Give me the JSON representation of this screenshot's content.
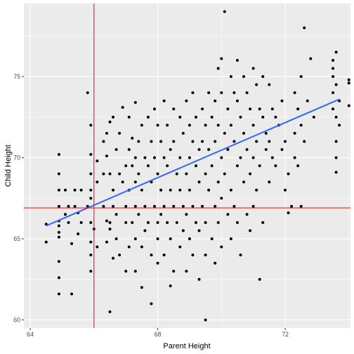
{
  "chart_data": {
    "type": "scatter",
    "xlabel": "Parent Height",
    "ylabel": "Child Height",
    "xlim": [
      63.8,
      74.05
    ],
    "ylim": [
      59.5,
      79.5
    ],
    "x_ticks": [
      64,
      68,
      72
    ],
    "x_tick_labels": [
      "64",
      "68",
      "72"
    ],
    "y_ticks": [
      60,
      65,
      70,
      75
    ],
    "y_tick_labels": [
      "60",
      "65",
      "70",
      "75"
    ],
    "grid": true,
    "legend": "none",
    "reference_lines": {
      "vertical_x": 66.0,
      "horizontal_y": 66.9
    },
    "regression_line": {
      "x": [
        64.5,
        73.7
      ],
      "y": [
        65.8,
        73.6
      ]
    },
    "colors": {
      "panel": "#ebebeb",
      "grid": "#ffffff",
      "points": "#000000",
      "fit_line": "#3366ff",
      "reference": "#ff0000"
    },
    "points": [
      [
        64.5,
        65.9
      ],
      [
        64.5,
        64.8
      ],
      [
        64.9,
        63.6
      ],
      [
        64.9,
        66.1
      ],
      [
        64.9,
        65.4
      ],
      [
        64.9,
        70.2
      ],
      [
        64.9,
        69.0
      ],
      [
        64.9,
        68.0
      ],
      [
        64.9,
        67.0
      ],
      [
        64.9,
        62.6
      ],
      [
        64.9,
        61.6
      ],
      [
        64.9,
        65.8
      ],
      [
        64.9,
        65.1
      ],
      [
        65.1,
        68.0
      ],
      [
        65.1,
        66.5
      ],
      [
        65.2,
        67.0
      ],
      [
        65.2,
        66.0
      ],
      [
        65.3,
        61.6
      ],
      [
        65.3,
        64.7
      ],
      [
        65.4,
        68.0
      ],
      [
        65.4,
        67.0
      ],
      [
        65.5,
        66.6
      ],
      [
        65.5,
        65.3
      ],
      [
        65.6,
        68.0
      ],
      [
        65.6,
        66.0
      ],
      [
        65.8,
        74.0
      ],
      [
        65.8,
        67.0
      ],
      [
        65.9,
        63.0
      ],
      [
        65.9,
        64.8
      ],
      [
        65.9,
        66.0
      ],
      [
        65.9,
        67.5
      ],
      [
        65.9,
        68.0
      ],
      [
        65.9,
        69.0
      ],
      [
        65.9,
        70.2
      ],
      [
        65.9,
        72.0
      ],
      [
        65.9,
        64.0
      ],
      [
        66.0,
        65.6
      ],
      [
        66.1,
        69.8
      ],
      [
        66.1,
        64.5
      ],
      [
        66.1,
        68.5
      ],
      [
        66.3,
        71.0
      ],
      [
        66.3,
        69.0
      ],
      [
        66.3,
        67.0
      ],
      [
        66.4,
        70.1
      ],
      [
        66.4,
        66.1
      ],
      [
        66.4,
        64.8
      ],
      [
        66.4,
        71.5
      ],
      [
        66.5,
        60.5
      ],
      [
        66.5,
        65.6
      ],
      [
        66.5,
        72.2
      ],
      [
        66.5,
        69.0
      ],
      [
        66.5,
        66.0
      ],
      [
        66.6,
        72.5
      ],
      [
        66.6,
        68.0
      ],
      [
        66.6,
        67.0
      ],
      [
        66.6,
        63.8
      ],
      [
        66.7,
        70.5
      ],
      [
        66.7,
        65.0
      ],
      [
        66.7,
        66.5
      ],
      [
        66.8,
        71.5
      ],
      [
        66.8,
        69.0
      ],
      [
        66.8,
        64.0
      ],
      [
        66.9,
        73.1
      ],
      [
        66.9,
        68.5
      ],
      [
        67.0,
        69.5
      ],
      [
        67.0,
        67.0
      ],
      [
        67.0,
        66.0
      ],
      [
        67.0,
        63.0
      ],
      [
        67.1,
        72.5
      ],
      [
        67.1,
        70.5
      ],
      [
        67.1,
        68.0
      ],
      [
        67.1,
        64.5
      ],
      [
        67.2,
        66.0
      ],
      [
        67.2,
        69.5
      ],
      [
        67.2,
        71.2
      ],
      [
        67.3,
        73.4
      ],
      [
        67.3,
        70.0
      ],
      [
        67.3,
        68.5
      ],
      [
        67.3,
        67.0
      ],
      [
        67.3,
        65.0
      ],
      [
        67.3,
        63.0
      ],
      [
        67.4,
        71.0
      ],
      [
        67.4,
        69.0
      ],
      [
        67.4,
        66.5
      ],
      [
        67.5,
        72.0
      ],
      [
        67.5,
        68.0
      ],
      [
        67.5,
        64.5
      ],
      [
        67.5,
        62.0
      ],
      [
        67.6,
        70.0
      ],
      [
        67.6,
        67.0
      ],
      [
        67.6,
        65.5
      ],
      [
        67.7,
        72.5
      ],
      [
        67.7,
        69.5
      ],
      [
        67.7,
        66.0
      ],
      [
        67.8,
        71.0
      ],
      [
        67.8,
        68.5
      ],
      [
        67.8,
        64.0
      ],
      [
        67.8,
        61.0
      ],
      [
        67.9,
        73.0
      ],
      [
        67.9,
        70.0
      ],
      [
        67.9,
        67.0
      ],
      [
        68.0,
        72.0
      ],
      [
        68.0,
        69.0
      ],
      [
        68.0,
        66.0
      ],
      [
        68.0,
        65.0
      ],
      [
        68.0,
        63.5
      ],
      [
        68.1,
        71.0
      ],
      [
        68.1,
        68.0
      ],
      [
        68.1,
        66.5
      ],
      [
        68.2,
        73.5
      ],
      [
        68.2,
        70.0
      ],
      [
        68.2,
        67.0
      ],
      [
        68.2,
        64.0
      ],
      [
        68.3,
        72.0
      ],
      [
        68.3,
        69.5
      ],
      [
        68.3,
        66.0
      ],
      [
        68.4,
        62.1
      ],
      [
        68.4,
        70.5
      ],
      [
        68.4,
        68.0
      ],
      [
        68.4,
        65.0
      ],
      [
        68.5,
        73.0
      ],
      [
        68.5,
        71.0
      ],
      [
        68.5,
        67.0
      ],
      [
        68.5,
        63.0
      ],
      [
        68.6,
        69.0
      ],
      [
        68.6,
        66.0
      ],
      [
        68.7,
        72.5
      ],
      [
        68.7,
        70.0
      ],
      [
        68.7,
        68.0
      ],
      [
        68.7,
        64.5
      ],
      [
        68.8,
        71.5
      ],
      [
        68.8,
        67.0
      ],
      [
        68.8,
        65.5
      ],
      [
        68.9,
        73.5
      ],
      [
        68.9,
        69.0
      ],
      [
        68.9,
        66.5
      ],
      [
        68.9,
        63.0
      ],
      [
        69.0,
        72.0
      ],
      [
        69.0,
        70.0
      ],
      [
        69.0,
        68.0
      ],
      [
        69.0,
        65.0
      ],
      [
        69.1,
        74.0
      ],
      [
        69.1,
        71.0
      ],
      [
        69.1,
        67.0
      ],
      [
        69.1,
        64.0
      ],
      [
        69.2,
        72.5
      ],
      [
        69.2,
        69.5
      ],
      [
        69.2,
        66.0
      ],
      [
        69.3,
        70.5
      ],
      [
        69.3,
        68.5
      ],
      [
        69.3,
        65.5
      ],
      [
        69.3,
        62.5
      ],
      [
        69.4,
        73.0
      ],
      [
        69.4,
        71.0
      ],
      [
        69.4,
        67.0
      ],
      [
        69.5,
        60.0
      ],
      [
        69.5,
        72.0
      ],
      [
        69.5,
        69.0
      ],
      [
        69.5,
        66.0
      ],
      [
        69.5,
        64.0
      ],
      [
        69.6,
        74.0
      ],
      [
        69.6,
        70.5
      ],
      [
        69.6,
        68.0
      ],
      [
        69.7,
        72.5
      ],
      [
        69.7,
        69.5
      ],
      [
        69.7,
        65.0
      ],
      [
        69.8,
        73.5
      ],
      [
        69.8,
        71.0
      ],
      [
        69.8,
        67.0
      ],
      [
        69.8,
        63.5
      ],
      [
        69.9,
        75.5
      ],
      [
        69.9,
        72.0
      ],
      [
        69.9,
        68.5
      ],
      [
        69.9,
        66.0
      ],
      [
        70.0,
        76.1
      ],
      [
        70.0,
        74.0
      ],
      [
        70.0,
        70.0
      ],
      [
        70.0,
        67.5
      ],
      [
        70.0,
        64.5
      ],
      [
        70.1,
        79.0
      ],
      [
        70.1,
        71.5
      ],
      [
        70.1,
        69.0
      ],
      [
        70.2,
        73.0
      ],
      [
        70.2,
        70.5
      ],
      [
        70.2,
        66.5
      ],
      [
        70.3,
        75.0
      ],
      [
        70.3,
        72.0
      ],
      [
        70.3,
        68.0
      ],
      [
        70.3,
        65.0
      ],
      [
        70.4,
        74.0
      ],
      [
        70.4,
        71.0
      ],
      [
        70.4,
        67.0
      ],
      [
        70.5,
        76.0
      ],
      [
        70.5,
        73.5
      ],
      [
        70.5,
        69.5
      ],
      [
        70.5,
        66.0
      ],
      [
        70.6,
        72.5
      ],
      [
        70.6,
        70.0
      ],
      [
        70.6,
        64.0
      ],
      [
        70.7,
        75.0
      ],
      [
        70.7,
        71.5
      ],
      [
        70.7,
        68.5
      ],
      [
        70.8,
        74.0
      ],
      [
        70.8,
        70.5
      ],
      [
        70.8,
        66.5
      ],
      [
        70.9,
        73.0
      ],
      [
        70.9,
        69.0
      ],
      [
        70.9,
        65.5
      ],
      [
        71.0,
        75.5
      ],
      [
        71.0,
        72.0
      ],
      [
        71.0,
        70.0
      ],
      [
        71.0,
        67.0
      ],
      [
        71.1,
        74.5
      ],
      [
        71.1,
        71.0
      ],
      [
        71.1,
        68.0
      ],
      [
        71.2,
        62.5
      ],
      [
        71.2,
        73.0
      ],
      [
        71.2,
        69.5
      ],
      [
        71.3,
        75.0
      ],
      [
        71.3,
        72.5
      ],
      [
        71.3,
        66.0
      ],
      [
        71.4,
        70.5
      ],
      [
        71.4,
        71.5
      ],
      [
        71.5,
        74.5
      ],
      [
        71.5,
        71.0
      ],
      [
        71.5,
        68.5
      ],
      [
        71.6,
        73.0
      ],
      [
        71.6,
        70.0
      ],
      [
        71.7,
        69.5
      ],
      [
        71.7,
        72.5
      ],
      [
        71.8,
        72.0
      ],
      [
        71.9,
        70.5
      ],
      [
        71.9,
        73.5
      ],
      [
        72.0,
        68.0
      ],
      [
        72.0,
        71.0
      ],
      [
        72.1,
        66.6
      ],
      [
        72.1,
        69.0
      ],
      [
        72.2,
        67.0
      ],
      [
        72.3,
        74.0
      ],
      [
        72.3,
        71.5
      ],
      [
        72.3,
        70.0
      ],
      [
        72.4,
        73.0
      ],
      [
        72.4,
        69.5
      ],
      [
        72.5,
        75.0
      ],
      [
        72.5,
        72.0
      ],
      [
        72.5,
        67.0
      ],
      [
        72.6,
        78.0
      ],
      [
        72.6,
        71.0
      ],
      [
        72.7,
        73.5
      ],
      [
        72.8,
        76.1
      ],
      [
        72.9,
        72.5
      ],
      [
        73.5,
        73.0
      ],
      [
        73.5,
        74.0
      ],
      [
        73.5,
        75.0
      ],
      [
        73.5,
        75.5
      ],
      [
        73.5,
        76.0
      ],
      [
        73.6,
        76.5
      ],
      [
        73.6,
        74.5
      ],
      [
        73.6,
        72.5
      ],
      [
        73.6,
        71.0
      ],
      [
        73.6,
        70.0
      ],
      [
        73.6,
        69.1
      ],
      [
        73.7,
        73.5
      ],
      [
        73.7,
        72.0
      ],
      [
        74.0,
        74.8
      ],
      [
        74.0,
        74.6
      ],
      [
        74.0,
        73.2
      ]
    ]
  }
}
